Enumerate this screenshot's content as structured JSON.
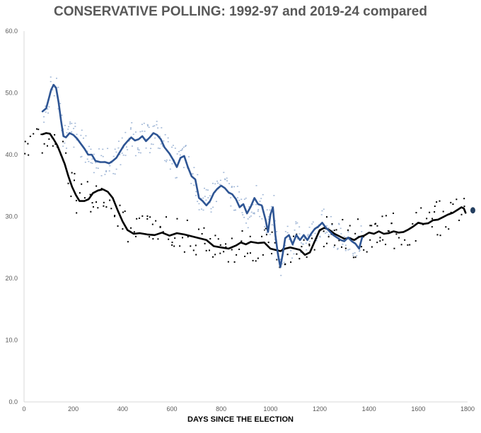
{
  "chart_data": {
    "type": "line",
    "title": "CONSERVATIVE POLLING: 1992-97 and 2019-24 compared",
    "xlabel": "DAYS SINCE THE ELECTION",
    "ylabel": "",
    "xlim": [
      0,
      1800
    ],
    "ylim": [
      0,
      60
    ],
    "x_ticks": [
      0,
      200,
      400,
      600,
      800,
      1000,
      1200,
      1400,
      1600,
      1800
    ],
    "y_ticks": [
      0.0,
      10.0,
      20.0,
      30.0,
      40.0,
      50.0,
      60.0
    ],
    "x_tick_labels": [
      "0",
      "200",
      "400",
      "600",
      "800",
      "1000",
      "1200",
      "1400",
      "1600",
      "1800"
    ],
    "y_tick_labels": [
      "0.0",
      "10.0",
      "20.0",
      "30.0",
      "40.0",
      "50.0",
      "60.0"
    ],
    "grid": false,
    "legend": "none",
    "series": [
      {
        "color": "#000000",
        "kind": "line",
        "points": [
          [
            75,
            43.3
          ],
          [
            90,
            43.5
          ],
          [
            105,
            43.4
          ],
          [
            120,
            42.5
          ],
          [
            135,
            41.5
          ],
          [
            150,
            40.0
          ],
          [
            165,
            38.5
          ],
          [
            180,
            36.5
          ],
          [
            195,
            34.8
          ],
          [
            210,
            33.5
          ],
          [
            225,
            32.5
          ],
          [
            245,
            32.5
          ],
          [
            262,
            32.8
          ],
          [
            280,
            33.8
          ],
          [
            300,
            34.2
          ],
          [
            320,
            34.4
          ],
          [
            340,
            34.0
          ],
          [
            360,
            33.0
          ],
          [
            380,
            31.0
          ],
          [
            400,
            29.2
          ],
          [
            420,
            27.8
          ],
          [
            445,
            27.2
          ],
          [
            470,
            27.3
          ],
          [
            500,
            27.1
          ],
          [
            530,
            27.0
          ],
          [
            560,
            27.4
          ],
          [
            590,
            26.9
          ],
          [
            620,
            27.3
          ],
          [
            650,
            27.1
          ],
          [
            680,
            26.8
          ],
          [
            710,
            26.5
          ],
          [
            740,
            26.2
          ],
          [
            770,
            25.2
          ],
          [
            800,
            25.0
          ],
          [
            830,
            24.8
          ],
          [
            860,
            25.3
          ],
          [
            880,
            25.8
          ],
          [
            900,
            25.5
          ],
          [
            920,
            25.9
          ],
          [
            950,
            25.7
          ],
          [
            975,
            25.8
          ],
          [
            1000,
            24.8
          ],
          [
            1020,
            24.6
          ],
          [
            1040,
            24.4
          ],
          [
            1060,
            24.8
          ],
          [
            1080,
            25.0
          ],
          [
            1100,
            24.8
          ],
          [
            1120,
            24.6
          ],
          [
            1140,
            23.8
          ],
          [
            1160,
            24.2
          ],
          [
            1180,
            26.0
          ],
          [
            1200,
            27.8
          ],
          [
            1220,
            28.2
          ],
          [
            1240,
            27.8
          ],
          [
            1260,
            27.2
          ],
          [
            1280,
            26.8
          ],
          [
            1300,
            26.4
          ],
          [
            1320,
            26.5
          ],
          [
            1340,
            26.2
          ],
          [
            1360,
            26.7
          ],
          [
            1380,
            26.9
          ],
          [
            1400,
            27.4
          ],
          [
            1420,
            27.2
          ],
          [
            1440,
            27.6
          ],
          [
            1460,
            27.2
          ],
          [
            1480,
            27.3
          ],
          [
            1500,
            27.6
          ],
          [
            1520,
            27.4
          ],
          [
            1540,
            27.5
          ],
          [
            1560,
            27.9
          ],
          [
            1580,
            28.4
          ],
          [
            1600,
            29.0
          ],
          [
            1620,
            28.8
          ],
          [
            1640,
            28.9
          ],
          [
            1660,
            29.4
          ],
          [
            1680,
            29.5
          ],
          [
            1700,
            29.9
          ],
          [
            1720,
            30.3
          ],
          [
            1740,
            30.6
          ],
          [
            1760,
            31.1
          ],
          [
            1775,
            31.5
          ],
          [
            1785,
            31.3
          ],
          [
            1792,
            30.6
          ]
        ]
      },
      {
        "color": "#2e5594",
        "kind": "line",
        "points": [
          [
            75,
            47.0
          ],
          [
            90,
            47.5
          ],
          [
            100,
            49.0
          ],
          [
            110,
            50.5
          ],
          [
            120,
            51.3
          ],
          [
            130,
            50.8
          ],
          [
            140,
            48.5
          ],
          [
            150,
            45.5
          ],
          [
            160,
            43.0
          ],
          [
            170,
            42.8
          ],
          [
            185,
            43.5
          ],
          [
            200,
            43.2
          ],
          [
            215,
            42.6
          ],
          [
            230,
            41.8
          ],
          [
            245,
            41.0
          ],
          [
            260,
            40.0
          ],
          [
            275,
            40.0
          ],
          [
            290,
            39.0
          ],
          [
            310,
            38.8
          ],
          [
            330,
            38.8
          ],
          [
            345,
            38.6
          ],
          [
            360,
            39.0
          ],
          [
            375,
            39.5
          ],
          [
            390,
            40.5
          ],
          [
            405,
            41.5
          ],
          [
            420,
            42.2
          ],
          [
            435,
            42.8
          ],
          [
            450,
            42.3
          ],
          [
            465,
            42.5
          ],
          [
            480,
            43.0
          ],
          [
            495,
            42.2
          ],
          [
            510,
            42.8
          ],
          [
            525,
            43.5
          ],
          [
            540,
            43.2
          ],
          [
            555,
            42.5
          ],
          [
            570,
            41.2
          ],
          [
            590,
            40.2
          ],
          [
            605,
            39.2
          ],
          [
            620,
            38.0
          ],
          [
            635,
            39.5
          ],
          [
            650,
            39.8
          ],
          [
            665,
            38.0
          ],
          [
            680,
            36.5
          ],
          [
            695,
            36.0
          ],
          [
            710,
            33.0
          ],
          [
            725,
            32.5
          ],
          [
            740,
            31.8
          ],
          [
            755,
            32.5
          ],
          [
            770,
            33.8
          ],
          [
            785,
            34.5
          ],
          [
            800,
            35.0
          ],
          [
            815,
            34.6
          ],
          [
            830,
            33.9
          ],
          [
            845,
            33.6
          ],
          [
            860,
            32.8
          ],
          [
            875,
            31.5
          ],
          [
            890,
            32.0
          ],
          [
            905,
            30.5
          ],
          [
            920,
            31.6
          ],
          [
            935,
            33.0
          ],
          [
            950,
            32.0
          ],
          [
            965,
            31.8
          ],
          [
            980,
            29.5
          ],
          [
            990,
            27.5
          ],
          [
            1000,
            30.3
          ],
          [
            1010,
            31.5
          ],
          [
            1020,
            27.0
          ],
          [
            1030,
            24.0
          ],
          [
            1040,
            21.8
          ],
          [
            1050,
            24.0
          ],
          [
            1060,
            26.5
          ],
          [
            1075,
            27.0
          ],
          [
            1090,
            25.5
          ],
          [
            1105,
            27.0
          ],
          [
            1120,
            26.2
          ],
          [
            1135,
            27.0
          ],
          [
            1150,
            26.2
          ],
          [
            1165,
            27.2
          ],
          [
            1180,
            28.0
          ],
          [
            1195,
            28.4
          ],
          [
            1210,
            29.0
          ],
          [
            1225,
            28.2
          ],
          [
            1240,
            27.6
          ],
          [
            1255,
            27.0
          ],
          [
            1270,
            26.6
          ],
          [
            1285,
            26.2
          ],
          [
            1300,
            26.0
          ],
          [
            1315,
            26.6
          ],
          [
            1330,
            26.0
          ],
          [
            1345,
            25.6
          ],
          [
            1360,
            24.8
          ],
          [
            1372,
            26.6
          ]
        ]
      }
    ],
    "marker": {
      "x": 1810,
      "y": 31.0,
      "color": "#243f60"
    }
  }
}
